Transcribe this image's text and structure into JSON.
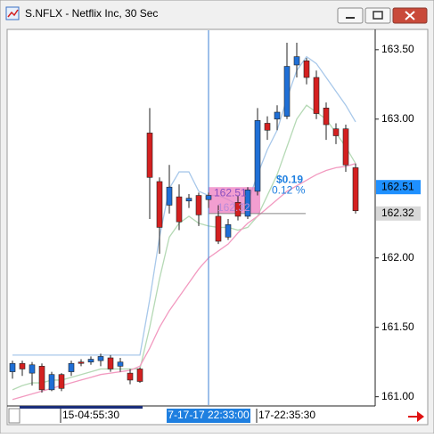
{
  "window": {
    "title": "S.NFLX - Netflix Inc, 30 Sec"
  },
  "chart_data": {
    "type": "candlestick",
    "categories": [
      null,
      null,
      null,
      null,
      null,
      null,
      null,
      null,
      "15-04:55:30",
      null,
      null,
      null,
      null,
      null,
      null,
      null,
      null,
      null,
      null,
      null,
      "7-17-17 22:33:00",
      null,
      null,
      null,
      null,
      null,
      null,
      null,
      "17-22:35:30",
      null,
      null,
      null,
      null,
      null,
      null,
      null
    ],
    "open": [
      161.18,
      161.24,
      161.17,
      161.22,
      161.05,
      161.16,
      161.18,
      161.25,
      161.25,
      161.26,
      161.28,
      161.22,
      161.17,
      161.2,
      162.9,
      162.55,
      162.38,
      162.44,
      162.41,
      162.45,
      162.42,
      162.3,
      162.15,
      162.4,
      162.3,
      162.48,
      162.97,
      163.0,
      163.02,
      163.39,
      163.42,
      163.3,
      163.08,
      162.93,
      162.93,
      162.65
    ],
    "high": [
      161.26,
      161.26,
      161.25,
      161.24,
      161.18,
      161.17,
      161.26,
      161.27,
      161.29,
      161.31,
      161.3,
      161.28,
      161.2,
      161.21,
      163.08,
      162.58,
      162.67,
      162.53,
      162.46,
      162.47,
      162.47,
      162.38,
      162.28,
      162.45,
      162.51,
      163.08,
      163.02,
      163.1,
      163.55,
      163.55,
      163.44,
      163.35,
      163.12,
      162.97,
      162.96,
      162.68
    ],
    "low": [
      161.13,
      161.15,
      161.08,
      161.03,
      161.04,
      161.04,
      161.15,
      161.22,
      161.23,
      161.22,
      161.18,
      161.18,
      161.09,
      161.1,
      162.28,
      162.03,
      162.32,
      162.2,
      162.36,
      162.23,
      162.36,
      162.1,
      162.13,
      162.27,
      162.28,
      162.45,
      162.85,
      162.92,
      163.0,
      163.3,
      163.25,
      163.0,
      162.85,
      162.82,
      162.62,
      162.32
    ],
    "close": [
      161.24,
      161.2,
      161.23,
      161.05,
      161.16,
      161.06,
      161.24,
      161.24,
      161.27,
      161.29,
      161.2,
      161.25,
      161.12,
      161.11,
      162.58,
      162.22,
      162.51,
      162.26,
      162.43,
      162.31,
      162.45,
      162.12,
      162.24,
      162.3,
      162.49,
      162.99,
      162.92,
      163.05,
      163.38,
      163.45,
      163.3,
      163.04,
      162.96,
      162.88,
      162.67,
      162.34
    ],
    "up_color": "#1f6fd6",
    "down_color": "#d42020",
    "moving_averages": [
      {
        "color": "#a8c8ea",
        "values": [
          161.3,
          161.3,
          161.3,
          161.3,
          161.3,
          161.3,
          161.3,
          161.3,
          161.3,
          161.3,
          161.3,
          161.3,
          161.3,
          161.3,
          161.7,
          162.15,
          162.5,
          162.62,
          162.62,
          162.48,
          162.45,
          162.45,
          162.42,
          162.38,
          162.4,
          162.6,
          162.78,
          162.92,
          163.15,
          163.35,
          163.45,
          163.4,
          163.3,
          163.2,
          163.1,
          162.98
        ]
      },
      {
        "color": "#b5d9b5",
        "values": [
          161.05,
          161.08,
          161.1,
          161.1,
          161.12,
          161.12,
          161.14,
          161.16,
          161.18,
          161.2,
          161.2,
          161.2,
          161.2,
          161.2,
          161.5,
          161.85,
          162.15,
          162.25,
          162.3,
          162.25,
          162.23,
          162.22,
          162.22,
          162.2,
          162.22,
          162.3,
          162.45,
          162.6,
          162.8,
          163.0,
          163.1,
          163.05,
          163.0,
          162.9,
          162.8,
          162.68
        ]
      },
      {
        "color": "#f29ac0",
        "values": [
          160.98,
          161.0,
          161.02,
          161.04,
          161.06,
          161.08,
          161.1,
          161.12,
          161.14,
          161.16,
          161.17,
          161.18,
          161.19,
          161.22,
          161.35,
          161.5,
          161.62,
          161.72,
          161.82,
          161.92,
          162.0,
          162.05,
          162.1,
          162.18,
          162.25,
          162.3,
          162.36,
          162.42,
          162.48,
          162.52,
          162.56,
          162.6,
          162.63,
          162.65,
          162.66,
          162.68
        ]
      }
    ],
    "ylim": [
      160.94,
      163.64
    ],
    "yticks": [
      {
        "value": 161.0,
        "label": "161.00"
      },
      {
        "value": 161.5,
        "label": "161.50"
      },
      {
        "value": 162.0,
        "label": "162.00"
      },
      {
        "value": 163.0,
        "label": "163.00"
      },
      {
        "value": 163.5,
        "label": "163.50"
      }
    ],
    "price_markers": [
      {
        "value": 162.51,
        "label": "162.51",
        "color": "#1e90ff"
      },
      {
        "value": 162.32,
        "label": "162.32",
        "color": "#d8d8d8"
      }
    ],
    "crosshair": {
      "category_index": 20,
      "value": 162.32
    },
    "measure": {
      "to_index": 25,
      "from": {
        "value": 162.32,
        "label": "162.32"
      },
      "to": {
        "value": 162.51,
        "label": "162.51"
      },
      "change_label": "$0.19",
      "percent_label": "0.12 %"
    }
  }
}
